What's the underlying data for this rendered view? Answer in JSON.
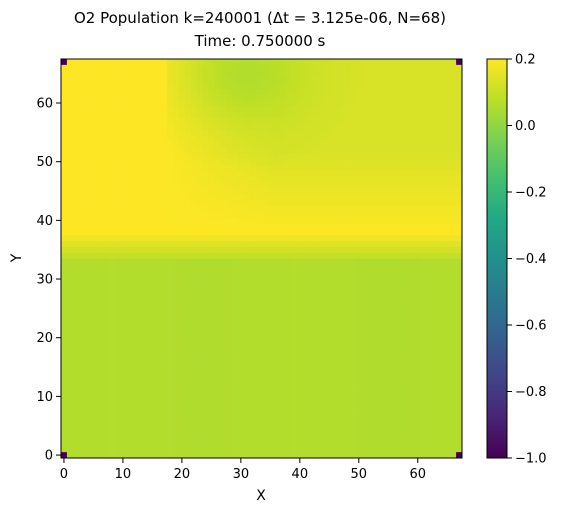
{
  "chart_data": {
    "type": "heatmap",
    "title_line1": "O2 Population k=240001 (Δt = 3.125e-06, N=68)",
    "title_line2": "Time: 0.750000 s",
    "xlabel": "X",
    "ylabel": "Y",
    "xlim": [
      -0.5,
      67.5
    ],
    "ylim": [
      -0.5,
      67.5
    ],
    "xticks": [
      "0",
      "10",
      "20",
      "30",
      "40",
      "50",
      "60"
    ],
    "yticks": [
      "0",
      "10",
      "20",
      "30",
      "40",
      "50",
      "60"
    ],
    "xtick_values": [
      0,
      10,
      20,
      30,
      40,
      50,
      60
    ],
    "ytick_values": [
      0,
      10,
      20,
      30,
      40,
      50,
      60
    ],
    "colormap": "viridis",
    "color_range": [
      -1.0,
      0.2
    ],
    "colorbar_ticks": [
      "0.2",
      "0.0",
      "−0.2",
      "−0.4",
      "−0.6",
      "−0.8",
      "−1.0"
    ],
    "colorbar_tick_values": [
      0.2,
      0.0,
      -0.2,
      -0.4,
      -0.6,
      -0.8,
      -1.0
    ],
    "grid": false,
    "field_description_values": {
      "lower_band_rows_0_to_33": 0.06,
      "upper_band_rows_38_to_67": 0.2,
      "top_right_region": 0.13,
      "green_spot_center": [
        31,
        65
      ],
      "green_spot_value": 0.06,
      "corner_cells_value": -1.0
    },
    "corner_cells": [
      [
        0,
        0
      ],
      [
        67,
        0
      ],
      [
        0,
        67
      ],
      [
        67,
        67
      ]
    ]
  }
}
